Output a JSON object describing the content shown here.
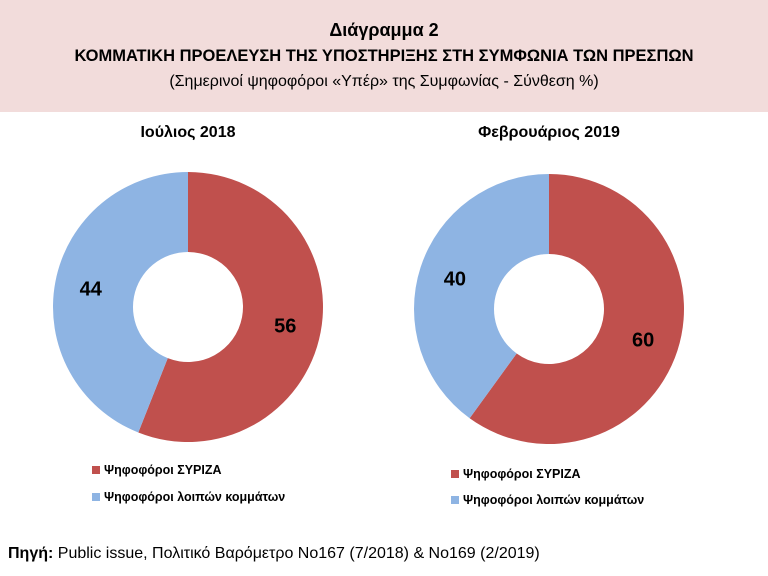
{
  "header": {
    "title": "Διάγραμμα 2",
    "subtitle": "ΚΟΜΜΑΤΙΚΗ ΠΡΟΕΛΕΥΣΗ ΤΗΣ ΥΠΟΣΤΗΡΙΞΗΣ ΣΤΗ ΣΥΜΦΩΝΙΑ ΤΩΝ ΠΡΕΣΠΩΝ",
    "note": "(Σημερινοί ψηφοφόροι «Υπέρ» της Συμφωνίας - Σύνθεση %)"
  },
  "colors": {
    "header_bg": "#f2dcdb",
    "syriza": "#c0504d",
    "others": "#8eb4e3"
  },
  "chart_data": [
    {
      "type": "pie",
      "subtype": "donut",
      "title": "Ιούλιος 2018",
      "categories": [
        "Ψηφοφόροι ΣΥΡΙΖΑ",
        "Ψηφοφόροι λοιπών κομμάτων"
      ],
      "values": [
        56,
        44
      ],
      "data_labels": [
        "56",
        "44"
      ],
      "legend": "bottom-left"
    },
    {
      "type": "pie",
      "subtype": "donut",
      "title": "Φεβρουάριος 2019",
      "categories": [
        "Ψηφοφόροι ΣΥΡΙΖΑ",
        "Ψηφοφόροι λοιπών κομμάτων"
      ],
      "values": [
        60,
        40
      ],
      "data_labels": [
        "60",
        "40"
      ],
      "legend": "bottom-left"
    }
  ],
  "source": {
    "label": "Πηγή:",
    "text": " Public issue, Πολιτικό Βαρόμετρο Νο167 (7/2018)  & Νο169 (2/2019)"
  }
}
